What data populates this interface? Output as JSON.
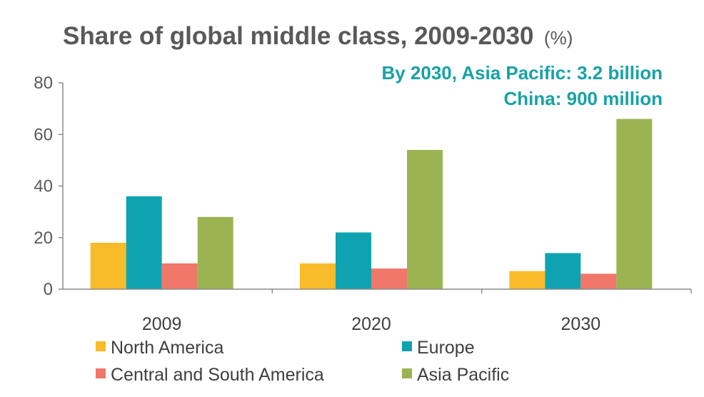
{
  "chart_data": {
    "type": "bar",
    "title": "Share of global middle class, 2009-2030",
    "title_unit": "(%)",
    "annotations": [
      "By 2030, Asia Pacific: 3.2 billion",
      "China: 900 million"
    ],
    "categories": [
      "2009",
      "2020",
      "2030"
    ],
    "series": [
      {
        "name": "North America",
        "color": "#f8bb29",
        "values": [
          18,
          10,
          7
        ]
      },
      {
        "name": "Europe",
        "color": "#0fa3b1",
        "values": [
          36,
          22,
          14
        ]
      },
      {
        "name": "Central and South America",
        "color": "#f0776a",
        "values": [
          10,
          8,
          6
        ]
      },
      {
        "name": "Asia Pacific",
        "color": "#9bb451",
        "values": [
          28,
          54,
          66
        ]
      }
    ],
    "ylim": [
      0,
      80
    ],
    "yticks": [
      0,
      20,
      40,
      60,
      80
    ],
    "xlabel": "",
    "ylabel": "",
    "grid": false,
    "legend_position": "bottom"
  }
}
